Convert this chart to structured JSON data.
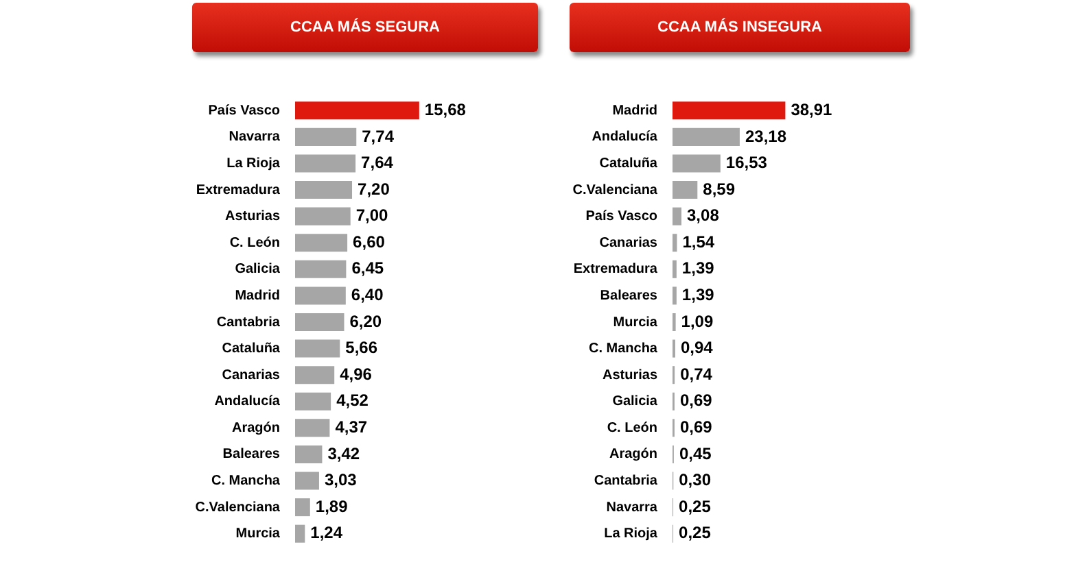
{
  "chart_data": [
    {
      "type": "bar",
      "orientation": "horizontal",
      "title": "CCAA MÁS SEGURA",
      "categories": [
        "País Vasco",
        "Navarra",
        "La Rioja",
        "Extremadura",
        "Asturias",
        "C. León",
        "Galicia",
        "Madrid",
        "Cantabria",
        "Cataluña",
        "Canarias",
        "Andalucía",
        "Aragón",
        "Baleares",
        "C. Mancha",
        "C.Valenciana",
        "Murcia"
      ],
      "values": [
        15.68,
        7.74,
        7.64,
        7.2,
        7.0,
        6.6,
        6.45,
        6.4,
        6.2,
        5.66,
        4.96,
        4.52,
        4.37,
        3.42,
        3.03,
        1.89,
        1.24
      ],
      "value_labels": [
        "15,68",
        "7,74",
        "7,64",
        "7,20",
        "7,00",
        "6,60",
        "6,45",
        "6,40",
        "6,20",
        "5,66",
        "4,96",
        "4,52",
        "4,37",
        "3,42",
        "3,03",
        "1,89",
        "1,24"
      ],
      "colors": [
        "#e0190f",
        "#a6a6a6",
        "#a6a6a6",
        "#a6a6a6",
        "#a6a6a6",
        "#a6a6a6",
        "#a6a6a6",
        "#a6a6a6",
        "#a6a6a6",
        "#a6a6a6",
        "#a6a6a6",
        "#a6a6a6",
        "#a6a6a6",
        "#a6a6a6",
        "#a6a6a6",
        "#a6a6a6",
        "#a6a6a6"
      ],
      "tick_labels": "y"
    },
    {
      "type": "bar",
      "orientation": "horizontal",
      "title": "CCAA MÁS INSEGURA",
      "categories": [
        "Madrid",
        "Andalucía",
        "Cataluña",
        "C.Valenciana",
        "País Vasco",
        "Canarias",
        "Extremadura",
        "Baleares",
        "Murcia",
        "C. Mancha",
        "Asturias",
        "Galicia",
        "C. León",
        "Aragón",
        "Cantabria",
        "Navarra",
        "La Rioja"
      ],
      "values": [
        38.91,
        23.18,
        16.53,
        8.59,
        3.08,
        1.54,
        1.39,
        1.39,
        1.09,
        0.94,
        0.74,
        0.69,
        0.69,
        0.45,
        0.3,
        0.25,
        0.25
      ],
      "value_labels": [
        "38,91",
        "23,18",
        "16,53",
        "8,59",
        "3,08",
        "1,54",
        "1,39",
        "1,39",
        "1,09",
        "0,94",
        "0,74",
        "0,69",
        "0,69",
        "0,45",
        "0,30",
        "0,25",
        "0,25"
      ],
      "colors": [
        "#e0190f",
        "#a6a6a6",
        "#a6a6a6",
        "#a6a6a6",
        "#a6a6a6",
        "#a6a6a6",
        "#a6a6a6",
        "#a6a6a6",
        "#a6a6a6",
        "#a6a6a6",
        "#a6a6a6",
        "#a6a6a6",
        "#a6a6a6",
        "#a6a6a6",
        "#a6a6a6",
        "#a6a6a6",
        "#a6a6a6"
      ],
      "tick_labels": "y"
    }
  ]
}
